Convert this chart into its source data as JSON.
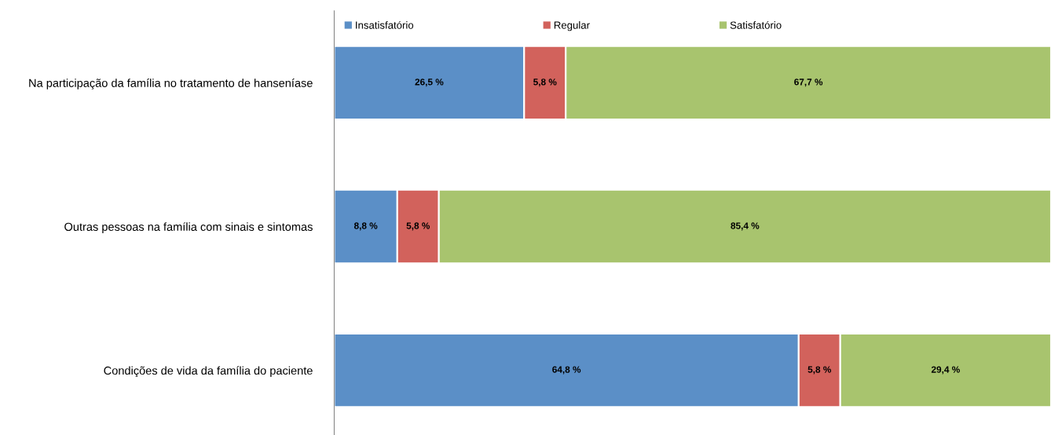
{
  "chart_data": {
    "type": "bar",
    "orientation": "horizontal",
    "stacked": true,
    "categories": [
      "Na participação da família no tratamento de hanseníase",
      "Outras pessoas na família com sinais e sintomas",
      "Condições de vida da família do paciente"
    ],
    "series": [
      {
        "name": "Insatisfatório",
        "color": "#5b8fc7",
        "values": [
          26.5,
          8.8,
          64.8
        ],
        "value_labels": [
          "26,5 %",
          "8,8 %",
          "64,8 %"
        ]
      },
      {
        "name": "Regular",
        "color": "#d2625c",
        "values": [
          5.8,
          5.8,
          5.8
        ],
        "value_labels": [
          "5,8 %",
          "5,8 %",
          "5,8 %"
        ]
      },
      {
        "name": "Satisfatório",
        "color": "#a8c46e",
        "values": [
          67.7,
          85.4,
          29.4
        ],
        "value_labels": [
          "67,7 %",
          "85,4 %",
          "29,4 %"
        ]
      }
    ],
    "xlim": [
      0,
      100
    ],
    "tick_labels": "y",
    "grid": false,
    "legend": "top"
  }
}
